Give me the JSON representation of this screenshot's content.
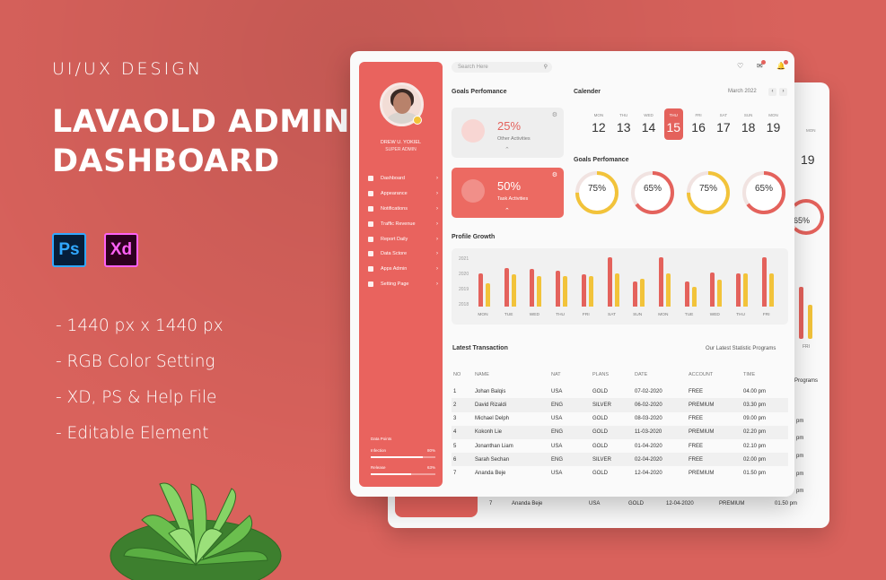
{
  "promo": {
    "eyebrow": "UI/UX DESIGN",
    "title_line1": "LAVAOLD ADMIN",
    "title_line2": "DASHBOARD",
    "apps": [
      "Ps",
      "Xd"
    ],
    "features": [
      "- 1440 px x 1440 px",
      "- RGB Color Setting",
      "- XD, PS & Help File",
      "- Editable Element"
    ]
  },
  "colors": {
    "background": "#d9625c",
    "accent": "#e4625c",
    "accent_yellow": "#f2c33a"
  },
  "search": {
    "placeholder": "Search Here"
  },
  "sidebar": {
    "user_name": "DREW U. YOKIEL",
    "user_role": "SUPER ADMIN",
    "items": [
      {
        "label": "Dashboard",
        "icon": "home-icon"
      },
      {
        "label": "Appearance",
        "icon": "appearance-icon"
      },
      {
        "label": "Notifications",
        "icon": "bell-icon"
      },
      {
        "label": "Traffic Revenue",
        "icon": "chart-icon"
      },
      {
        "label": "Report Daily",
        "icon": "report-icon"
      },
      {
        "label": "Data Sctore",
        "icon": "data-icon"
      },
      {
        "label": "Apps Admin",
        "icon": "apps-icon"
      },
      {
        "label": "Setting Page",
        "icon": "gear-icon"
      }
    ],
    "data_points": {
      "title": "Data Points",
      "rows": [
        {
          "label": "Infection",
          "value": "80%",
          "fraction": 0.8
        },
        {
          "label": "Release",
          "value": "63%",
          "fraction": 0.63
        }
      ]
    }
  },
  "goals": {
    "title": "Goals Perfomance",
    "cards": [
      {
        "value": "25%",
        "label": "Other Activities"
      },
      {
        "value": "50%",
        "label": "Task Activities"
      }
    ]
  },
  "calendar": {
    "title": "Calender",
    "month": "March 2022",
    "days": [
      {
        "dow": "MON",
        "num": "12"
      },
      {
        "dow": "THU",
        "num": "13"
      },
      {
        "dow": "WED",
        "num": "14"
      },
      {
        "dow": "THU",
        "num": "15",
        "active": true
      },
      {
        "dow": "FRI",
        "num": "16"
      },
      {
        "dow": "SAT",
        "num": "17"
      },
      {
        "dow": "SUN",
        "num": "18"
      },
      {
        "dow": "MON",
        "num": "19"
      }
    ]
  },
  "goal_rings": {
    "title": "Goals Perfomance",
    "rings": [
      {
        "value": "75%",
        "fraction": 0.75,
        "color": "#f2c33a"
      },
      {
        "value": "65%",
        "fraction": 0.65,
        "color": "#e4625c"
      },
      {
        "value": "75%",
        "fraction": 0.75,
        "color": "#f2c33a"
      },
      {
        "value": "65%",
        "fraction": 0.65,
        "color": "#e4625c"
      }
    ]
  },
  "chart_data": {
    "type": "bar",
    "title": "Profile Growth",
    "categories": [
      "MON",
      "TUE",
      "WED",
      "THU",
      "FRI",
      "SAT",
      "SUN",
      "MON",
      "TUE",
      "WED",
      "THU",
      "FRI"
    ],
    "y_ticks": [
      "2021",
      "2020",
      "2019",
      "2018"
    ],
    "ylim": [
      0,
      100
    ],
    "series": [
      {
        "values": [
          60,
          70,
          68,
          65,
          58,
          88,
          45,
          88,
          45,
          62,
          60,
          88
        ]
      },
      {
        "values": [
          42,
          58,
          55,
          55,
          55,
          60,
          50,
          60,
          35,
          48,
          60,
          60
        ]
      }
    ]
  },
  "transactions": {
    "title": "Latest Transaction",
    "link": "Our Latest Statistic Programs",
    "columns": [
      "NO",
      "NAME",
      "NAT",
      "PLANS",
      "DATE",
      "ACCOUNT",
      "TIME"
    ],
    "rows": [
      [
        "1",
        "Johan Balqis",
        "USA",
        "GOLD",
        "07-02-2020",
        "FREE",
        "04.00 pm"
      ],
      [
        "2",
        "David Rizaldi",
        "ENG",
        "SILVER",
        "06-02-2020",
        "PREMIUM",
        "03.30 pm"
      ],
      [
        "3",
        "Michael Delph",
        "USA",
        "GOLD",
        "08-03-2020",
        "FREE",
        "09.00 pm"
      ],
      [
        "4",
        "Kokonh Lie",
        "ENG",
        "GOLD",
        "11-03-2020",
        "PREMIUM",
        "02.20 pm"
      ],
      [
        "5",
        "Jonanthan Liam",
        "USA",
        "GOLD",
        "01-04-2020",
        "FREE",
        "02.10 pm"
      ],
      [
        "6",
        "Sarah Sechan",
        "ENG",
        "SILVER",
        "02-04-2020",
        "FREE",
        "02.00 pm"
      ],
      [
        "7",
        "Ananda Beje",
        "USA",
        "GOLD",
        "12-04-2020",
        "PREMIUM",
        "01.50 pm"
      ]
    ]
  },
  "back_card": {
    "cal_num": "19",
    "cal_dow": "MON",
    "ring_value": "65%",
    "bar_label": "FRI",
    "link_partial": "Programs",
    "times_partial": [
      "pm",
      "pm",
      "pm",
      "pm",
      "pm",
      "pm",
      "pm"
    ],
    "last_row": [
      "7",
      "Ananda Beje",
      "USA",
      "GOLD",
      "12-04-2020",
      "PREMIUM",
      "01.50 pm"
    ]
  }
}
